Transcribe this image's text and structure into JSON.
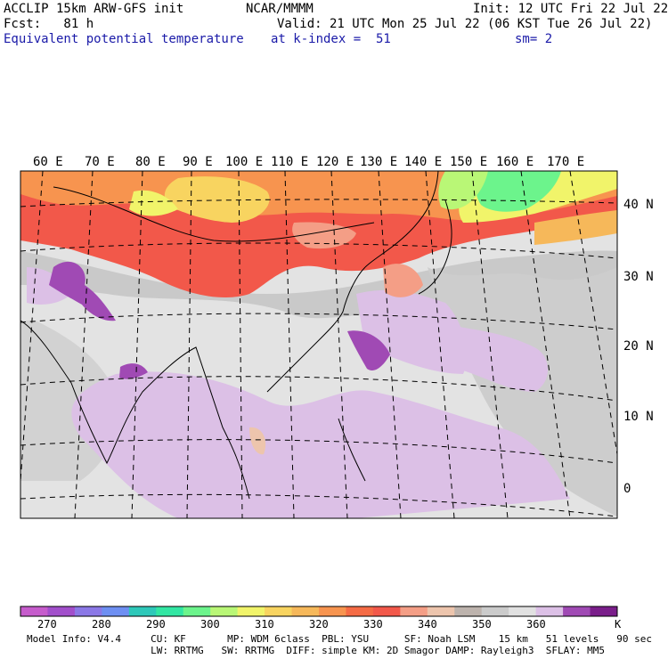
{
  "header": {
    "model": "ACCLIP 15km ARW-GFS init",
    "org": "NCAR/MMMM",
    "init": "Init: 12 UTC Fri 22 Jul 22",
    "fcst": "Fcst:   81 h",
    "valid": "Valid: 21 UTC Mon 25 Jul 22 (06 KST Tue 26 Jul 22)",
    "field": "Equivalent potential temperature",
    "level": "at k-index =  51",
    "smooth": "sm= 2"
  },
  "map": {
    "lon_labels": [
      "60 E",
      "70 E",
      "80 E",
      "90 E",
      "100 E",
      "110 E",
      "120 E",
      "130 E",
      "140 E",
      "150 E",
      "160 E",
      "170 E"
    ],
    "lat_labels": [
      "40 N",
      "30 N",
      "20 N",
      "10 N",
      "0"
    ]
  },
  "colorbar": {
    "colors": [
      "#c65ccc",
      "#a24fcb",
      "#8b78e6",
      "#6e8ff2",
      "#2ec8b9",
      "#32e6a3",
      "#6cf48c",
      "#b9f776",
      "#f1f46a",
      "#f8d460",
      "#f6b85a",
      "#f7944f",
      "#f56b45",
      "#f2584a",
      "#f49e86",
      "#edc5ad",
      "#bdb3ad",
      "#cbcbcb",
      "#e1e1e1",
      "#dcc0e6",
      "#a04ab4",
      "#7a1e8a"
    ],
    "labels": [
      "270",
      "280",
      "290",
      "300",
      "310",
      "320",
      "330",
      "340",
      "350",
      "360"
    ],
    "unit": "K"
  },
  "footer": {
    "line1": "Model Info: V4.4     CU: KF       MP: WDM 6class  PBL: YSU      SF: Noah LSM    15 km   51 levels   90 sec",
    "line2": "                     LW: RRTMG   SW: RRTMG  DIFF: simple KM: 2D Smagor DAMP: Rayleigh3  SFLAY: MM5"
  }
}
